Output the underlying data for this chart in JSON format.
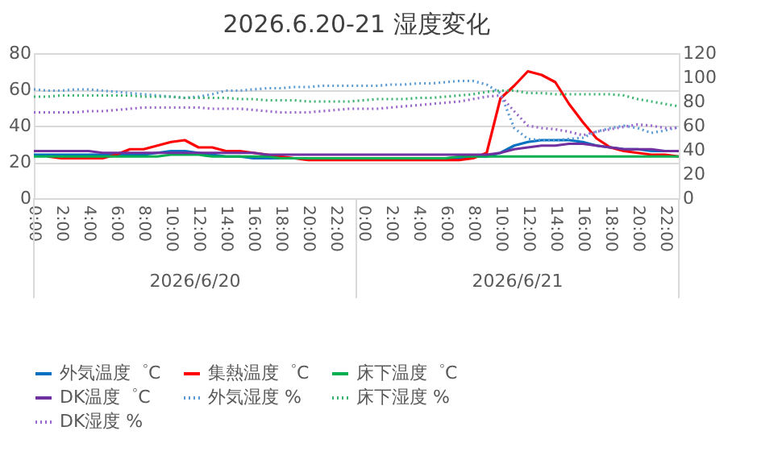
{
  "chart_data": {
    "type": "line",
    "title": "2026.6.20-21 湿度変化",
    "categories": [
      "0:00",
      null,
      "2:00",
      null,
      "4:00",
      null,
      "6:00",
      null,
      "8:00",
      null,
      "10:00",
      null,
      "12:00",
      null,
      "14:00",
      null,
      "16:00",
      null,
      "18:00",
      null,
      "20:00",
      null,
      "22:00",
      null,
      "0:00",
      null,
      "2:00",
      null,
      "4:00",
      null,
      "6:00",
      null,
      "8:00",
      null,
      "10:00",
      null,
      "12:00",
      null,
      "14:00",
      null,
      "16:00",
      null,
      "18:00",
      null,
      "20:00",
      null,
      "22:00",
      null
    ],
    "annotations": [
      "2026/6/20",
      "2026/6/21"
    ],
    "ylim": [
      0,
      80
    ],
    "yticks": [
      0,
      20,
      40,
      60,
      80
    ],
    "y2lim": [
      0,
      120
    ],
    "y2ticks": [
      0,
      20,
      40,
      60,
      80,
      100,
      120
    ],
    "grid": "y",
    "legend": "bottom",
    "marker": "none",
    "series": [
      {
        "name": "外気温度゜C",
        "color": "#0070c0",
        "line_style": "solid",
        "values": [
          24,
          24,
          24,
          24,
          24,
          24,
          24,
          24,
          24,
          25,
          26,
          26,
          25,
          24,
          23,
          23,
          22,
          22,
          22,
          22,
          22,
          22,
          22,
          22,
          22,
          22,
          22,
          22,
          22,
          22,
          22,
          22,
          23,
          23,
          25,
          29,
          31,
          32,
          32,
          32,
          31,
          29,
          28,
          27,
          27,
          26,
          26,
          26
        ]
      },
      {
        "name": "集熱温度゜C",
        "color": "#ff0000",
        "line_style": "solid",
        "values": [
          null,
          23,
          22,
          22,
          22,
          22,
          24,
          27,
          27,
          29,
          31,
          32,
          28,
          28,
          26,
          26,
          25,
          24,
          23,
          22,
          21,
          21,
          21,
          21,
          21,
          21,
          21,
          21,
          21,
          21,
          21,
          21,
          22,
          25,
          55,
          62,
          70,
          68,
          64,
          52,
          42,
          33,
          28,
          26,
          25,
          24,
          24,
          23
        ]
      },
      {
        "name": "床下温度゜C",
        "color": "#00b050",
        "line_style": "solid",
        "values": [
          23,
          23,
          23,
          23,
          23,
          23,
          23,
          23,
          23,
          23,
          24,
          24,
          24,
          23,
          23,
          23,
          23,
          23,
          22,
          22,
          22,
          22,
          22,
          22,
          22,
          22,
          22,
          22,
          22,
          22,
          22,
          23,
          23,
          23,
          23,
          23,
          23,
          23,
          23,
          23,
          23,
          23,
          23,
          23,
          23,
          23,
          23,
          23
        ]
      },
      {
        "name": "DK温度゜C",
        "color": "#7030a0",
        "line_style": "solid",
        "values": [
          26,
          26,
          26,
          26,
          26,
          25,
          25,
          25,
          25,
          25,
          25,
          25,
          25,
          25,
          25,
          25,
          25,
          24,
          24,
          24,
          24,
          24,
          24,
          24,
          24,
          24,
          24,
          24,
          24,
          24,
          24,
          24,
          24,
          24,
          25,
          27,
          28,
          29,
          29,
          30,
          30,
          29,
          28,
          27,
          27,
          27,
          26,
          26
        ]
      },
      {
        "name": "外気湿度 %",
        "color": "#5b9bd5",
        "line_style": "dotted",
        "axis": "y2",
        "values": [
          90,
          89,
          89,
          90,
          90,
          89,
          88,
          87,
          86,
          85,
          84,
          83,
          84,
          86,
          89,
          89,
          90,
          91,
          91,
          92,
          92,
          93,
          93,
          93,
          93,
          93,
          94,
          94,
          95,
          95,
          96,
          97,
          97,
          94,
          87,
          58,
          49,
          48,
          48,
          49,
          50,
          55,
          58,
          60,
          58,
          54,
          56,
          59
        ]
      },
      {
        "name": "床下湿度 %",
        "color": "#3cb371",
        "line_style": "dotted",
        "axis": "y2",
        "values": [
          84,
          84,
          85,
          85,
          85,
          85,
          85,
          85,
          84,
          84,
          84,
          83,
          83,
          83,
          83,
          82,
          82,
          81,
          81,
          81,
          80,
          80,
          80,
          80,
          81,
          82,
          82,
          82,
          83,
          83,
          84,
          85,
          86,
          88,
          89,
          89,
          87,
          87,
          86,
          86,
          86,
          86,
          86,
          85,
          82,
          80,
          78,
          76
        ]
      },
      {
        "name": "DK湿度 %",
        "color": "#9966cc",
        "line_style": "dotted",
        "axis": "y2",
        "values": [
          71,
          71,
          71,
          71,
          72,
          72,
          73,
          74,
          75,
          75,
          75,
          75,
          75,
          74,
          74,
          74,
          73,
          72,
          71,
          71,
          71,
          72,
          73,
          74,
          74,
          74,
          75,
          76,
          77,
          78,
          79,
          80,
          82,
          84,
          85,
          72,
          60,
          58,
          57,
          55,
          52,
          55,
          57,
          59,
          61,
          60,
          58,
          58
        ]
      }
    ]
  }
}
